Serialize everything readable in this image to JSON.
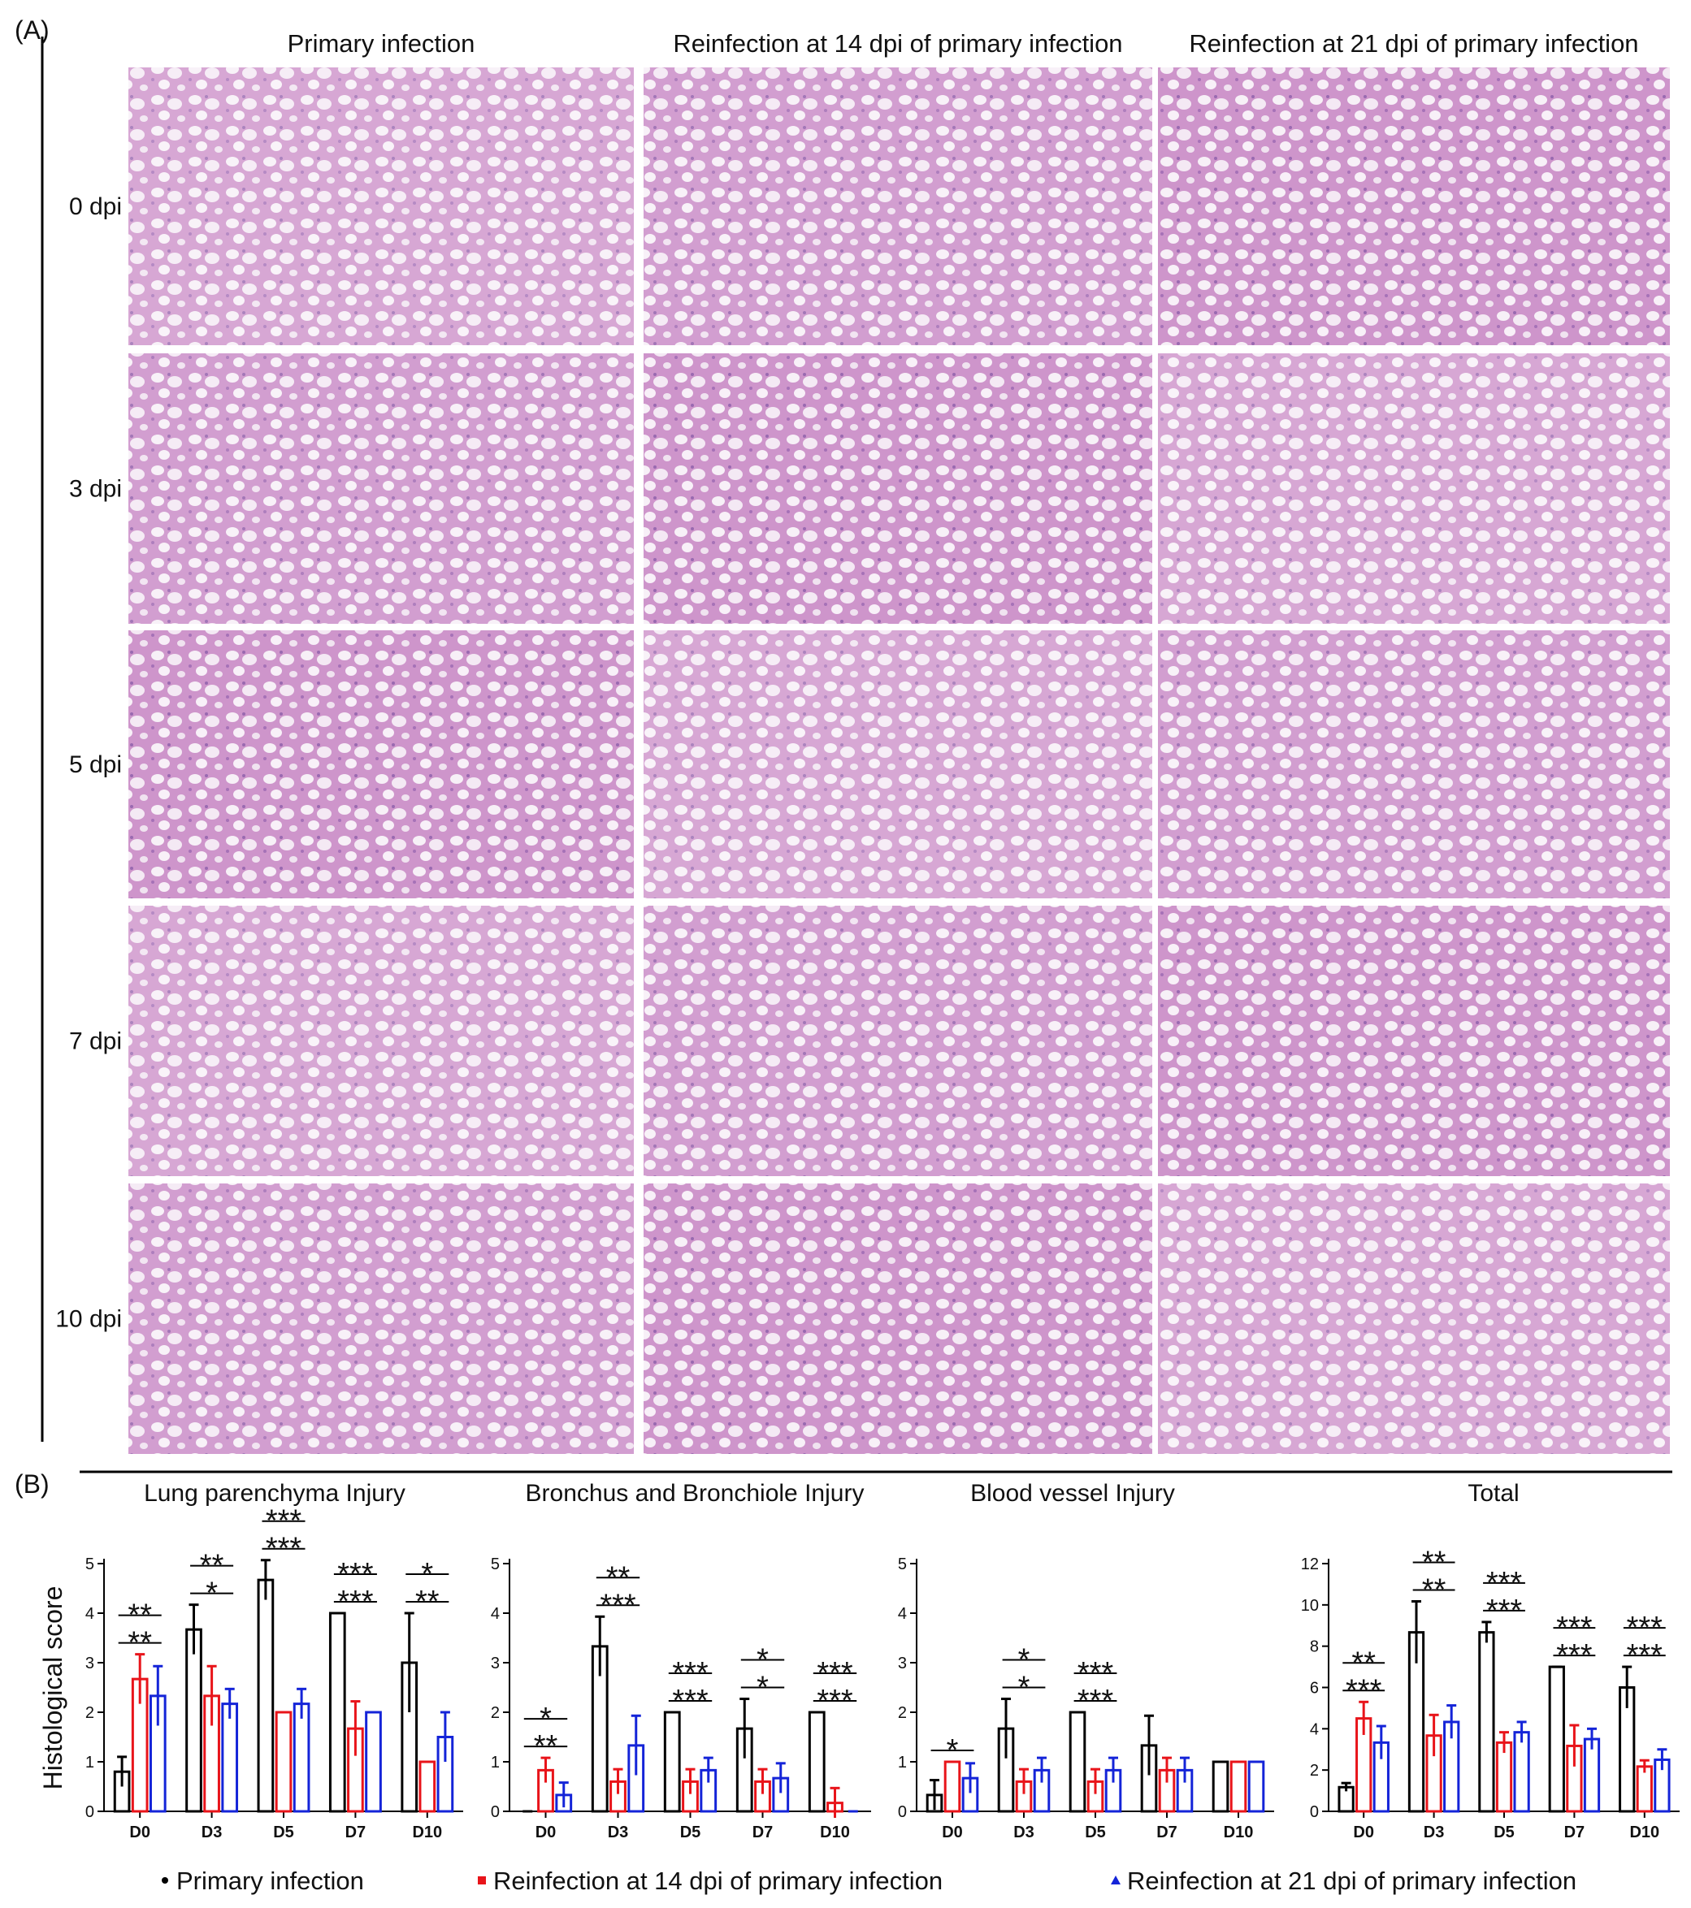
{
  "panel_a": {
    "label": "(A)",
    "columns": [
      "Primary infection",
      "Reinfection at 14 dpi of primary infection",
      "Reinfection at 21 dpi of primary infection"
    ],
    "rows": [
      "0 dpi",
      "3 dpi",
      "5 dpi",
      "7 dpi",
      "10 dpi"
    ]
  },
  "panel_b": {
    "label": "(B)",
    "ylabel": "Histological score"
  },
  "chart_data": [
    {
      "type": "bar",
      "title": "Lung parenchyma Injury",
      "categories": [
        "D0",
        "D3",
        "D5",
        "D7",
        "D10"
      ],
      "ylim": [
        0,
        5
      ],
      "yticks": [
        0,
        1,
        2,
        3,
        4,
        5
      ],
      "series": [
        {
          "name": "Primary infection",
          "color": "#000000",
          "marker": "circle",
          "values": [
            0.8,
            3.67,
            4.67,
            4.0,
            3.0
          ],
          "errors": [
            0.3,
            0.5,
            0.4,
            0,
            1.0
          ]
        },
        {
          "name": "Reinfection at 14 dpi of primary infection",
          "color": "#e8141a",
          "marker": "square",
          "values": [
            2.67,
            2.33,
            2.0,
            1.67,
            1.0
          ],
          "errors": [
            0.5,
            0.6,
            0,
            0.55,
            0
          ]
        },
        {
          "name": "Reinfection at 21 dpi of primary infection",
          "color": "#1424d8",
          "marker": "triangle",
          "values": [
            2.33,
            2.17,
            2.17,
            2.0,
            1.5
          ],
          "errors": [
            0.6,
            0.3,
            0.3,
            0,
            0.5
          ]
        }
      ],
      "significance": [
        {
          "category": 0,
          "labels": [
            "**",
            "**"
          ]
        },
        {
          "category": 1,
          "labels": [
            "**",
            "*"
          ]
        },
        {
          "category": 2,
          "labels": [
            "***",
            "***"
          ]
        },
        {
          "category": 3,
          "labels": [
            "***",
            "***"
          ]
        },
        {
          "category": 4,
          "labels": [
            "*",
            "**"
          ]
        }
      ]
    },
    {
      "type": "bar",
      "title": "Bronchus and  Bronchiole Injury",
      "categories": [
        "D0",
        "D3",
        "D5",
        "D7",
        "D10"
      ],
      "ylim": [
        0,
        5
      ],
      "yticks": [
        0,
        1,
        2,
        3,
        4,
        5
      ],
      "series": [
        {
          "color": "#000000",
          "values": [
            0,
            3.33,
            2.0,
            1.67,
            2.0
          ],
          "errors": [
            0,
            0.6,
            0,
            0.6,
            0
          ]
        },
        {
          "color": "#e8141a",
          "values": [
            0.83,
            0.6,
            0.6,
            0.6,
            0.17
          ],
          "errors": [
            0.25,
            0.25,
            0.25,
            0.25,
            0.3
          ]
        },
        {
          "color": "#1424d8",
          "values": [
            0.33,
            1.33,
            0.83,
            0.67,
            0
          ],
          "errors": [
            0.25,
            0.6,
            0.25,
            0.3,
            0
          ]
        }
      ],
      "significance": [
        {
          "category": 0,
          "labels": [
            "*",
            "**"
          ]
        },
        {
          "category": 1,
          "labels": [
            "**",
            "***"
          ]
        },
        {
          "category": 2,
          "labels": [
            "***",
            "***"
          ]
        },
        {
          "category": 3,
          "labels": [
            "*",
            "*"
          ]
        },
        {
          "category": 4,
          "labels": [
            "***",
            "***"
          ]
        }
      ]
    },
    {
      "type": "bar",
      "title": "Blood vessel Injury",
      "categories": [
        "D0",
        "D3",
        "D5",
        "D7",
        "D10"
      ],
      "ylim": [
        0,
        5
      ],
      "yticks": [
        0,
        1,
        2,
        3,
        4,
        5
      ],
      "series": [
        {
          "color": "#000000",
          "values": [
            0.33,
            1.67,
            2.0,
            1.33,
            1.0
          ],
          "errors": [
            0.3,
            0.6,
            0,
            0.6,
            0
          ]
        },
        {
          "color": "#e8141a",
          "values": [
            1.0,
            0.6,
            0.6,
            0.83,
            1.0
          ],
          "errors": [
            0,
            0.25,
            0.25,
            0.25,
            0
          ]
        },
        {
          "color": "#1424d8",
          "values": [
            0.67,
            0.83,
            0.83,
            0.83,
            1.0
          ],
          "errors": [
            0.3,
            0.25,
            0.25,
            0.25,
            0
          ]
        }
      ],
      "significance": [
        {
          "category": 0,
          "labels": [
            "*"
          ]
        },
        {
          "category": 1,
          "labels": [
            "*",
            "*"
          ]
        },
        {
          "category": 2,
          "labels": [
            "***",
            "***"
          ]
        }
      ]
    },
    {
      "type": "bar",
      "title": "Total",
      "categories": [
        "D0",
        "D3",
        "D5",
        "D7",
        "D10"
      ],
      "ylim": [
        0,
        12
      ],
      "yticks": [
        0,
        2,
        4,
        6,
        8,
        10,
        12
      ],
      "series": [
        {
          "color": "#000000",
          "values": [
            1.17,
            8.67,
            8.67,
            7.0,
            6.0
          ],
          "errors": [
            0.2,
            1.5,
            0.5,
            0,
            1.0
          ]
        },
        {
          "color": "#e8141a",
          "values": [
            4.5,
            3.67,
            3.33,
            3.17,
            2.17
          ],
          "errors": [
            0.8,
            1.0,
            0.5,
            1.0,
            0.3
          ]
        },
        {
          "color": "#1424d8",
          "values": [
            3.33,
            4.33,
            3.83,
            3.5,
            2.5
          ],
          "errors": [
            0.8,
            0.8,
            0.5,
            0.5,
            0.5
          ]
        }
      ],
      "significance": [
        {
          "category": 0,
          "labels": [
            "**",
            "***"
          ]
        },
        {
          "category": 1,
          "labels": [
            "**",
            "**"
          ]
        },
        {
          "category": 2,
          "labels": [
            "***",
            "***"
          ]
        },
        {
          "category": 3,
          "labels": [
            "***",
            "***"
          ]
        },
        {
          "category": 4,
          "labels": [
            "***",
            "***"
          ]
        }
      ]
    }
  ]
}
